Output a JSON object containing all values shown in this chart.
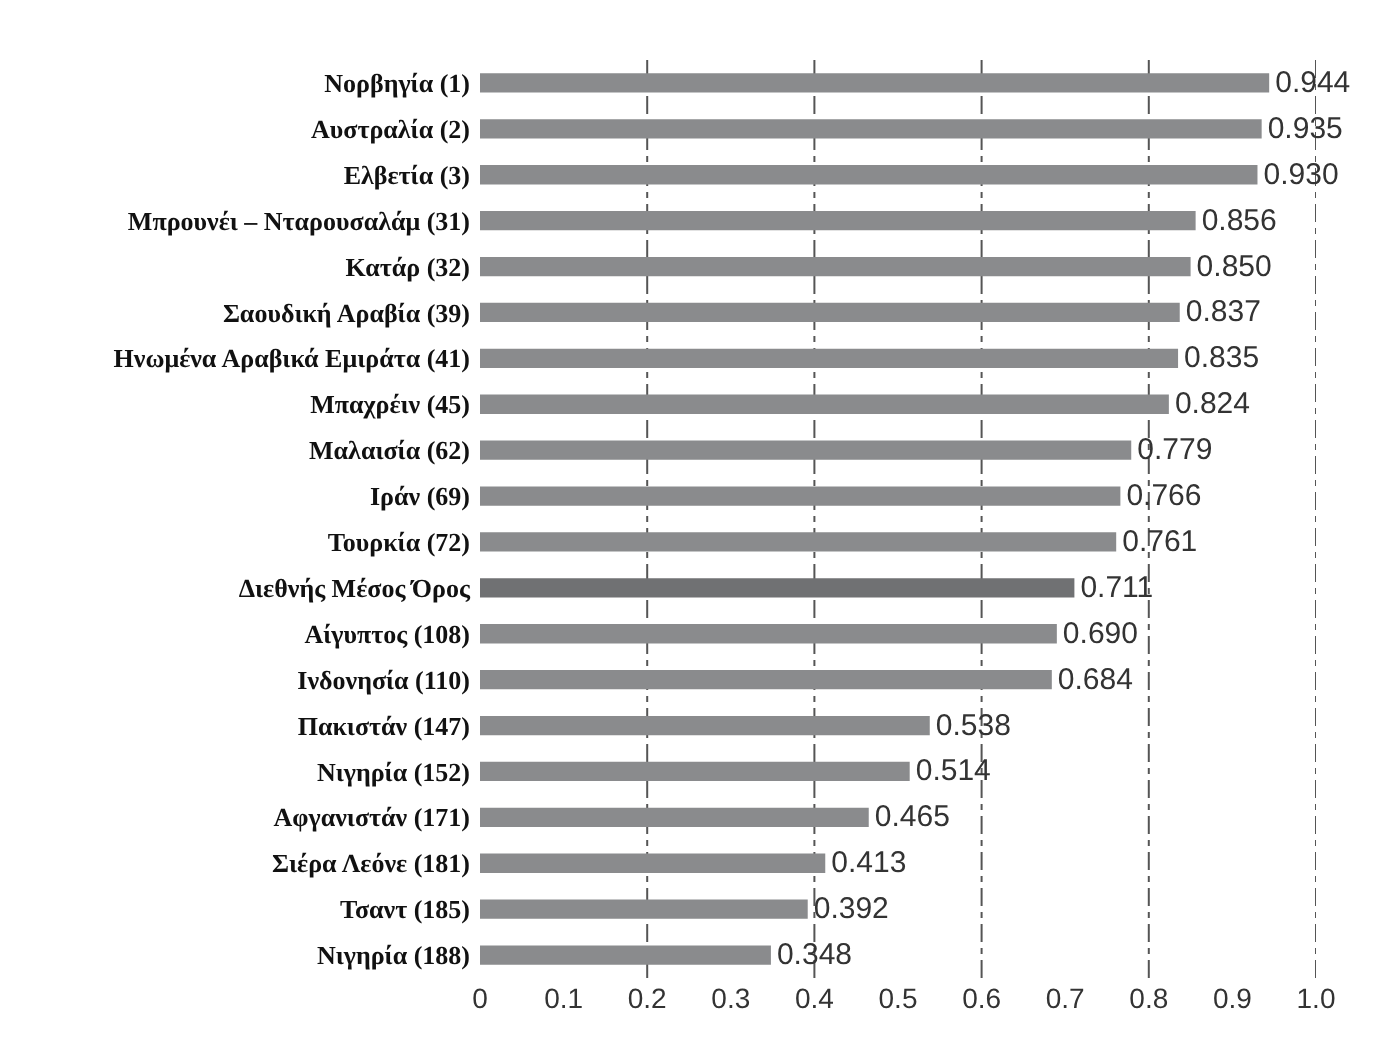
{
  "chart_data": {
    "type": "bar",
    "orientation": "horizontal",
    "categories": [
      "Νορβηγία (1)",
      "Αυστραλία (2)",
      "Ελβετία (3)",
      "Μπρουνέι – Νταρουσαλάμ (31)",
      "Κατάρ (32)",
      "Σαουδική Αραβία (39)",
      "Ηνωμένα Αραβικά Εμιράτα (41)",
      "Μπαχρέιν (45)",
      "Μαλαισία (62)",
      "Ιράν (69)",
      "Τουρκία (72)",
      "Διεθνής Μέσος Όρος",
      "Αίγυπτος (108)",
      "Ινδονησία (110)",
      "Πακιστάν (147)",
      "Νιγηρία (152)",
      "Αφγανιστάν (171)",
      "Σιέρα Λεόνε (181)",
      "Τσαντ (185)",
      "Νιγηρία (188)"
    ],
    "values": [
      0.944,
      0.935,
      0.93,
      0.856,
      0.85,
      0.837,
      0.835,
      0.824,
      0.779,
      0.766,
      0.761,
      0.711,
      0.69,
      0.684,
      0.538,
      0.514,
      0.465,
      0.413,
      0.392,
      0.348
    ],
    "value_labels": [
      "0.944",
      "0.935",
      "0.930",
      "0.856",
      "0.850",
      "0.837",
      "0.835",
      "0.824",
      "0.779",
      "0.766",
      "0.761",
      "0.711",
      "0.690",
      "0.684",
      "0.538",
      "0.514",
      "0.465",
      "0.413",
      "0.392",
      "0.348"
    ],
    "colors": [
      "#8a8b8d",
      "#8a8b8d",
      "#8a8b8d",
      "#8a8b8d",
      "#8a8b8d",
      "#8a8b8d",
      "#8a8b8d",
      "#8a8b8d",
      "#8a8b8d",
      "#8a8b8d",
      "#8a8b8d",
      "#707173",
      "#8a8b8d",
      "#8a8b8d",
      "#8a8b8d",
      "#8a8b8d",
      "#8a8b8d",
      "#8a8b8d",
      "#8a8b8d",
      "#8a8b8d"
    ],
    "xlim": [
      0,
      1.0
    ],
    "xticks": [
      0,
      {
        "value": 0.1,
        "label": "0.1"
      },
      {
        "value": 0.2,
        "label": "0.2"
      },
      {
        "value": 0.3,
        "label": "0.3"
      },
      {
        "value": 0.4,
        "label": "0.4"
      },
      {
        "value": 0.5,
        "label": "0.5"
      },
      {
        "value": 0.6,
        "label": "0.6"
      },
      {
        "value": 0.7,
        "label": "0.7"
      },
      {
        "value": 0.8,
        "label": "0.8"
      },
      {
        "value": 0.9,
        "label": "0.9"
      },
      {
        "value": 1.0,
        "label": "1.0"
      }
    ],
    "grid": "x"
  }
}
